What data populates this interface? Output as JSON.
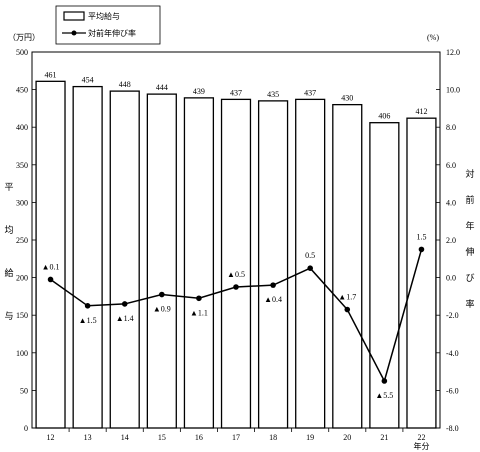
{
  "chart_data": {
    "type": "bar+line",
    "categories": [
      "12",
      "13",
      "14",
      "15",
      "16",
      "17",
      "18",
      "19",
      "20",
      "21",
      "22"
    ],
    "x_suffix": "年分",
    "series": [
      {
        "name": "平均給与",
        "type": "bar",
        "axis": "left",
        "values": [
          461,
          454,
          448,
          444,
          439,
          437,
          435,
          437,
          430,
          406,
          412
        ],
        "labels": [
          "461",
          "454",
          "448",
          "444",
          "439",
          "437",
          "435",
          "437",
          "430",
          "406",
          "412"
        ]
      },
      {
        "name": "対前年伸び率",
        "type": "line",
        "axis": "right",
        "values": [
          -0.1,
          -1.5,
          -1.4,
          -0.9,
          -1.1,
          -0.5,
          -0.4,
          0.5,
          -1.7,
          -5.5,
          1.5
        ],
        "labels": [
          "▲0.1",
          "▲1.5",
          "▲1.4",
          "▲0.9",
          "▲1.1",
          "▲0.5",
          "▲0.4",
          "0.5",
          "▲1.7",
          "▲5.5",
          "1.5"
        ]
      }
    ],
    "left_axis": {
      "unit": "（万円）",
      "title": [
        "平",
        "均",
        "給",
        "与"
      ],
      "min": 0,
      "max": 500,
      "step": 50,
      "ticks": [
        "0",
        "50",
        "100",
        "150",
        "200",
        "250",
        "300",
        "350",
        "400",
        "450",
        "500"
      ]
    },
    "right_axis": {
      "unit": "(%)",
      "title": [
        "対",
        "前",
        "年",
        "伸",
        "び",
        "率"
      ],
      "min": -8,
      "max": 12,
      "step": 2,
      "ticks": [
        "-8.0",
        "-6.0",
        "-4.0",
        "-2.0",
        "0.0",
        "2.0",
        "4.0",
        "6.0",
        "8.0",
        "10.0",
        "12.0"
      ]
    },
    "grid": false,
    "legend_position": "top-left"
  }
}
